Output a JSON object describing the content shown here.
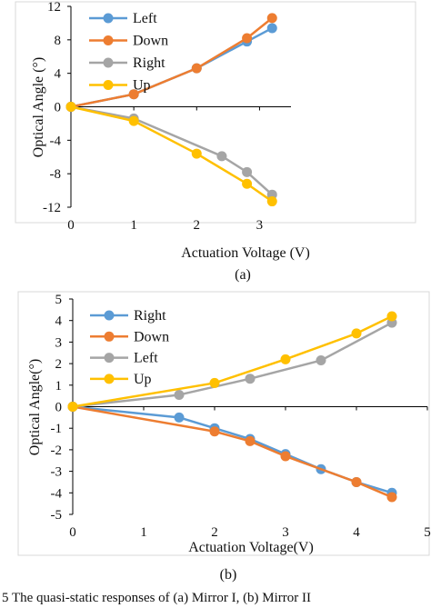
{
  "chart_data": [
    {
      "type": "line",
      "title": "",
      "xlabel": "Actuation Voltage (V)",
      "ylabel": "Optical Angle  (°)",
      "panel_label": "(a)",
      "xlim": [
        0,
        3.5
      ],
      "ylim": [
        -12,
        12
      ],
      "xticks": [
        "0",
        "1",
        "2",
        "3"
      ],
      "yticks": [
        "12",
        "8",
        "4",
        "0",
        "-4",
        "-8",
        "-12"
      ],
      "xtick_values": [
        0,
        1,
        2,
        3
      ],
      "ytick_values": [
        12,
        8,
        4,
        0,
        -4,
        -8,
        -12
      ],
      "grid": false,
      "legend_position": "top-right",
      "series": [
        {
          "name": "Left",
          "color": "#5B9BD5",
          "x": [
            0,
            1,
            2,
            2.8,
            3.2
          ],
          "y": [
            0,
            1.5,
            4.6,
            7.8,
            9.4
          ]
        },
        {
          "name": "Down",
          "color": "#ED7D31",
          "x": [
            0,
            1,
            2,
            2.8,
            3.2
          ],
          "y": [
            0,
            1.5,
            4.6,
            8.2,
            10.6
          ]
        },
        {
          "name": "Right",
          "color": "#A5A5A5",
          "x": [
            0,
            1,
            2.4,
            2.8,
            3.2
          ],
          "y": [
            0,
            -1.4,
            -5.9,
            -7.8,
            -10.5
          ]
        },
        {
          "name": "Up",
          "color": "#FFC000",
          "x": [
            0,
            1,
            2,
            2.8,
            3.2
          ],
          "y": [
            0,
            -1.7,
            -5.6,
            -9.2,
            -11.3
          ]
        }
      ]
    },
    {
      "type": "line",
      "title": "",
      "xlabel": "Actuation Voltage(V)",
      "ylabel": "Optical Angle(°)",
      "panel_label": "(b)",
      "xlim": [
        0,
        5
      ],
      "ylim": [
        -5,
        5
      ],
      "xticks": [
        "0",
        "1",
        "2",
        "3",
        "4",
        "5"
      ],
      "yticks": [
        "5",
        "4",
        "3",
        "2",
        "1",
        "0",
        "-1",
        "-2",
        "-3",
        "-4",
        "-5"
      ],
      "xtick_values": [
        0,
        1,
        2,
        3,
        4,
        5
      ],
      "ytick_values": [
        5,
        4,
        3,
        2,
        1,
        0,
        -1,
        -2,
        -3,
        -4,
        -5
      ],
      "grid": false,
      "legend_position": "top-left",
      "series": [
        {
          "name": "Right",
          "color": "#5B9BD5",
          "x": [
            0,
            1.5,
            2,
            2.5,
            3,
            3.5,
            4,
            4.5
          ],
          "y": [
            0,
            -0.5,
            -1.0,
            -1.5,
            -2.2,
            -2.9,
            -3.5,
            -4.0
          ]
        },
        {
          "name": "Down",
          "color": "#ED7D31",
          "x": [
            0,
            2,
            2.5,
            3,
            4,
            4.5
          ],
          "y": [
            0,
            -1.15,
            -1.6,
            -2.3,
            -3.5,
            -4.2
          ]
        },
        {
          "name": "Left",
          "color": "#A5A5A5",
          "x": [
            0,
            1.5,
            2.5,
            3.5,
            4.5
          ],
          "y": [
            0,
            0.55,
            1.3,
            2.15,
            3.9
          ]
        },
        {
          "name": "Up",
          "color": "#FFC000",
          "x": [
            0,
            2,
            3,
            4,
            4.5
          ],
          "y": [
            0,
            1.1,
            2.2,
            3.4,
            4.2
          ]
        }
      ]
    }
  ],
  "caption": "5    The quasi-static responses of (a) Mirror I, (b) Mirror II"
}
